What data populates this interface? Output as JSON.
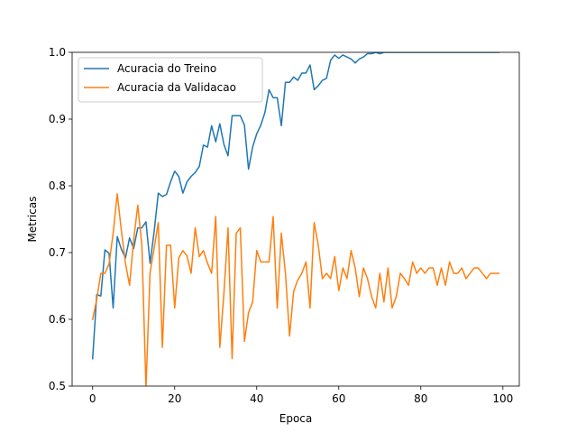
{
  "chart_data": {
    "type": "line",
    "title": "",
    "xlabel": "Epoca",
    "ylabel": "Metricas",
    "xlim": [
      -5,
      104
    ],
    "ylim": [
      0.5,
      1.0
    ],
    "xticks": [
      0,
      20,
      40,
      60,
      80,
      100
    ],
    "yticks": [
      0.5,
      0.6,
      0.7,
      0.8,
      0.9,
      1.0
    ],
    "xtick_labels": [
      "0",
      "20",
      "40",
      "60",
      "80",
      "100"
    ],
    "ytick_labels": [
      "0.5",
      "0.6",
      "0.7",
      "0.8",
      "0.9",
      "1.0"
    ],
    "grid": false,
    "legend_position": "top-left",
    "x": [
      0,
      1,
      2,
      3,
      4,
      5,
      6,
      7,
      8,
      9,
      10,
      11,
      12,
      13,
      14,
      15,
      16,
      17,
      18,
      19,
      20,
      21,
      22,
      23,
      24,
      25,
      26,
      27,
      28,
      29,
      30,
      31,
      32,
      33,
      34,
      35,
      36,
      37,
      38,
      39,
      40,
      41,
      42,
      43,
      44,
      45,
      46,
      47,
      48,
      49,
      50,
      51,
      52,
      53,
      54,
      55,
      56,
      57,
      58,
      59,
      60,
      61,
      62,
      63,
      64,
      65,
      66,
      67,
      68,
      69,
      70,
      71,
      72,
      73,
      74,
      75,
      76,
      77,
      78,
      79,
      80,
      81,
      82,
      83,
      84,
      85,
      86,
      87,
      88,
      89,
      90,
      91,
      92,
      93,
      94,
      95,
      96,
      97,
      98,
      99
    ],
    "series": [
      {
        "name": "Acuracia do Treino",
        "color": "#1f77b4",
        "values": [
          0.541,
          0.637,
          0.635,
          0.704,
          0.699,
          0.617,
          0.724,
          0.705,
          0.692,
          0.722,
          0.706,
          0.737,
          0.737,
          0.746,
          0.684,
          0.732,
          0.789,
          0.784,
          0.787,
          0.806,
          0.822,
          0.814,
          0.789,
          0.806,
          0.814,
          0.82,
          0.829,
          0.861,
          0.858,
          0.89,
          0.866,
          0.893,
          0.862,
          0.845,
          0.905,
          0.905,
          0.905,
          0.891,
          0.825,
          0.858,
          0.878,
          0.891,
          0.91,
          0.944,
          0.932,
          0.932,
          0.89,
          0.955,
          0.955,
          0.963,
          0.958,
          0.969,
          0.969,
          0.981,
          0.944,
          0.95,
          0.958,
          0.961,
          0.988,
          0.996,
          0.991,
          0.996,
          0.993,
          0.99,
          0.984,
          0.99,
          0.993,
          0.998,
          0.998,
          1.0,
          0.998,
          1.0,
          1.0,
          1.0,
          1.0,
          1.0,
          1.0,
          1.0,
          1.0,
          1.0,
          1.0,
          1.0,
          1.0,
          1.0,
          1.0,
          1.0,
          1.0,
          1.0,
          1.0,
          1.0,
          1.0,
          1.0,
          1.0,
          1.0,
          1.0,
          1.0,
          1.0,
          1.0,
          1.0,
          1.0
        ]
      },
      {
        "name": "Acuracia da Validacao",
        "color": "#ff7f0e",
        "values": [
          0.6,
          0.63,
          0.669,
          0.669,
          0.683,
          0.729,
          0.788,
          0.733,
          0.684,
          0.651,
          0.719,
          0.771,
          0.711,
          0.497,
          0.67,
          0.707,
          0.745,
          0.558,
          0.711,
          0.711,
          0.617,
          0.692,
          0.703,
          0.695,
          0.669,
          0.737,
          0.694,
          0.703,
          0.684,
          0.669,
          0.754,
          0.558,
          0.639,
          0.737,
          0.541,
          0.729,
          0.737,
          0.567,
          0.61,
          0.626,
          0.703,
          0.686,
          0.686,
          0.686,
          0.754,
          0.617,
          0.729,
          0.669,
          0.575,
          0.642,
          0.659,
          0.669,
          0.686,
          0.617,
          0.745,
          0.711,
          0.661,
          0.669,
          0.661,
          0.694,
          0.643,
          0.677,
          0.661,
          0.703,
          0.677,
          0.634,
          0.677,
          0.661,
          0.634,
          0.617,
          0.669,
          0.626,
          0.677,
          0.617,
          0.634,
          0.669,
          0.661,
          0.651,
          0.686,
          0.669,
          0.677,
          0.669,
          0.677,
          0.677,
          0.651,
          0.677,
          0.651,
          0.686,
          0.669,
          0.669,
          0.677,
          0.661,
          0.669,
          0.677,
          0.677,
          0.669,
          0.661,
          0.669,
          0.669,
          0.669
        ]
      }
    ]
  }
}
